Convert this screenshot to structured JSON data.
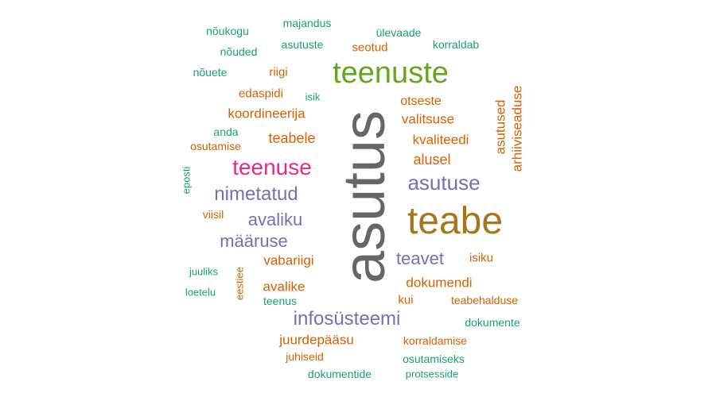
{
  "colors": {
    "teal": "#1b9e77",
    "orange": "#d95f02",
    "purple": "#7570b3",
    "pink": "#e7298a",
    "green": "#66a61e",
    "gold": "#a6761d",
    "gray": "#666666"
  },
  "words": {
    "w_majandus": "majandus",
    "w_noukogu": "nõukogu",
    "w_ulevaade": "ülevaade",
    "w_asutuste": "asutuste",
    "w_seotud": "seotud",
    "w_korraldab": "korraldab",
    "w_nouded": "nõuded",
    "w_teenuste": "teenuste",
    "w_nouete": "nõuete",
    "w_riigi": "riigi",
    "w_edaspidi": "edaspidi",
    "w_isik": "isik",
    "w_otseste": "otseste",
    "w_asutused": "asutused",
    "w_arhiiviseaduse": "arhiiviseaduse",
    "w_koordineerija": "koordineerija",
    "w_valitsuse": "valitsuse",
    "w_anda": "anda",
    "w_teabele": "teabele",
    "w_kvaliteedi": "kvaliteedi",
    "w_osutamise": "osutamise",
    "w_alusel": "alusel",
    "w_asutus": "asutus",
    "w_teenuse": "teenuse",
    "w_eposti": "eposti",
    "w_asutuse": "asutuse",
    "w_nimetatud": "nimetatud",
    "w_teabe": "teabe",
    "w_viisil": "viisil",
    "w_avaliku": "avaliku",
    "w_maaruse": "määruse",
    "w_vabariigi": "vabariigi",
    "w_teavet": "teavet",
    "w_isiku": "isiku",
    "w_juuliks": "juuliks",
    "w_eestiee": "eestiee",
    "w_dokumendi": "dokumendi",
    "w_avalike": "avalike",
    "w_loetelu": "loetelu",
    "w_teenus": "teenus",
    "w_kui": "kui",
    "w_teabehalduse": "teabehalduse",
    "w_infosusteemi": "infosüsteemi",
    "w_dokumente": "dokumente",
    "w_juurdepaasu": "juurdepääsu",
    "w_korraldamise": "korraldamise",
    "w_juhiseid": "juhiseid",
    "w_osutamiseks": "osutamiseks",
    "w_dokumentide": "dokumentide",
    "w_protsesside": "protsesside"
  }
}
